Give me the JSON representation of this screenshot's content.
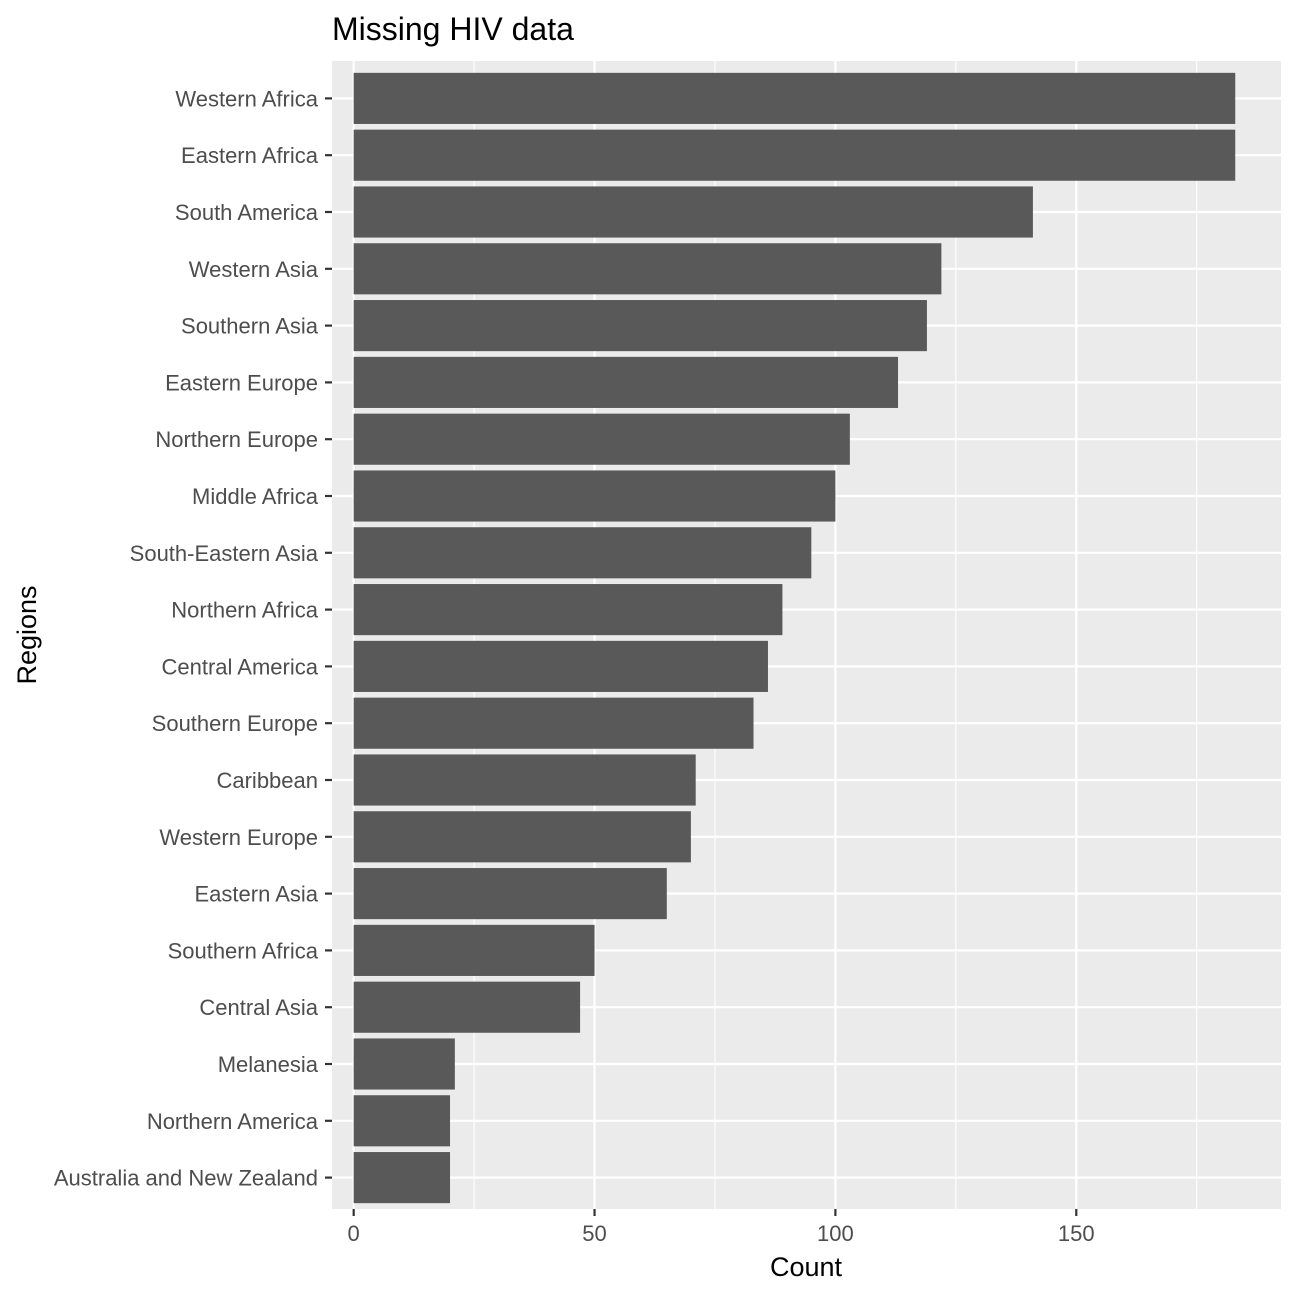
{
  "chart_data": {
    "type": "bar",
    "orientation": "horizontal",
    "title": "Missing HIV data",
    "xlabel": "Count",
    "ylabel": "Regions",
    "xlim": [
      -4.5,
      192.5
    ],
    "xticks": [
      0,
      50,
      100,
      150
    ],
    "grid": true,
    "colors": {
      "bar": "#595959",
      "panel_background": "#ebebeb",
      "grid": "#ffffff",
      "tick_label": "#4d4d4d"
    },
    "categories": [
      "Western Africa",
      "Eastern Africa",
      "South America",
      "Western Asia",
      "Southern Asia",
      "Eastern Europe",
      "Northern Europe",
      "Middle Africa",
      "South-Eastern Asia",
      "Northern Africa",
      "Central America",
      "Southern Europe",
      "Caribbean",
      "Western Europe",
      "Eastern Asia",
      "Southern Africa",
      "Central Asia",
      "Melanesia",
      "Northern America",
      "Australia and New Zealand"
    ],
    "values": [
      183,
      183,
      141,
      122,
      119,
      113,
      103,
      100,
      95,
      89,
      86,
      83,
      71,
      70,
      65,
      50,
      47,
      21,
      20,
      20
    ]
  }
}
